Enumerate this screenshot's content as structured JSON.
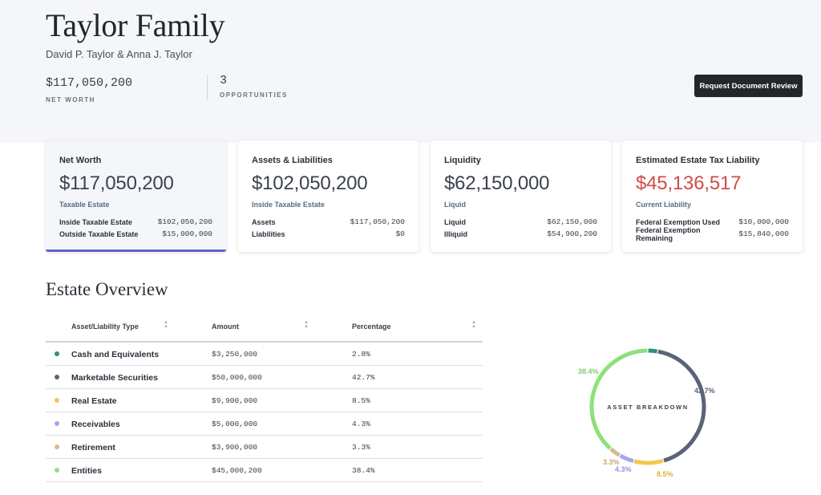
{
  "header": {
    "title": "Taylor Family",
    "subtitle": "David P. Taylor & Anna J. Taylor",
    "net_worth": {
      "value": "$117,050,200",
      "label": "NET WORTH"
    },
    "opportunities": {
      "value": "3",
      "label": "OPPORTUNITIES"
    },
    "review_button": "Request Document Review"
  },
  "cards": [
    {
      "title": "Net Worth",
      "value": "$117,050,200",
      "sub": "Taxable Estate",
      "rows": [
        {
          "k": "Inside Taxable Estate",
          "v": "$102,050,200"
        },
        {
          "k": "Outside Taxable Estate",
          "v": "$15,000,000"
        }
      ]
    },
    {
      "title": "Assets & Liabilities",
      "value": "$102,050,200",
      "sub": "Inside Taxable Estate",
      "rows": [
        {
          "k": "Assets",
          "v": "$117,050,200"
        },
        {
          "k": "Liabilities",
          "v": "$0"
        }
      ]
    },
    {
      "title": "Liquidity",
      "value": "$62,150,000",
      "sub": "Liquid",
      "rows": [
        {
          "k": "Liquid",
          "v": "$62,150,000"
        },
        {
          "k": "Illiquid",
          "v": "$54,900,200"
        }
      ]
    },
    {
      "title": "Estimated Estate Tax Liability",
      "value": "$45,136,517",
      "value_color": "#d24b4b",
      "sub": "Current Liability",
      "rows": [
        {
          "k": "Federal Exemption Used",
          "v": "$10,000,000"
        },
        {
          "k": "Federal Exemption Remaining",
          "v": "$15,840,000"
        }
      ]
    }
  ],
  "overview": {
    "title": "Estate Overview",
    "columns": [
      "Asset/Liability Type",
      "Amount",
      "Percentage"
    ],
    "rows": [
      {
        "type": "Cash and Equivalents",
        "amount": "$3,250,000",
        "percentage": "2.8%",
        "color": "#2f8f7a",
        "icon": "dot-icon"
      },
      {
        "type": "Marketable Securities",
        "amount": "$50,000,000",
        "percentage": "42.7%",
        "color": "#5b6378",
        "icon": "dot-icon"
      },
      {
        "type": "Real Estate",
        "amount": "$9,900,000",
        "percentage": "8.5%",
        "color": "#f2c94c",
        "icon": "dot-icon"
      },
      {
        "type": "Receivables",
        "amount": "$5,000,000",
        "percentage": "4.3%",
        "color": "#a3a8ea",
        "icon": "dot-icon"
      },
      {
        "type": "Retirement",
        "amount": "$3,900,000",
        "percentage": "3.3%",
        "color": "#d9b896",
        "icon": "dot-icon"
      },
      {
        "type": "Entities",
        "amount": "$45,000,200",
        "percentage": "38.4%",
        "color": "#8ee07b",
        "icon": "dot-icon"
      }
    ],
    "sort_icon": "sort-arrows-icon"
  },
  "chart_data": {
    "type": "pie",
    "title": "ASSET BREAKDOWN",
    "categories": [
      "Cash and Equivalents",
      "Marketable Securities",
      "Real Estate",
      "Receivables",
      "Retirement",
      "Entities"
    ],
    "values": [
      2.8,
      42.7,
      8.5,
      4.3,
      3.3,
      38.4
    ],
    "labels": [
      "",
      "42.7%",
      "8.5%",
      "4.3%",
      "3.3%",
      "38.4%"
    ],
    "colors": [
      "#2f8f7a",
      "#5b6378",
      "#f2c94c",
      "#a3a8ea",
      "#d9b896",
      "#8ee07b"
    ],
    "label_colors": [
      "#2f8f7a",
      "#5b6378",
      "#e0b03a",
      "#8f95e0",
      "#c9a479",
      "#7bcf66"
    ],
    "style": "donut"
  }
}
